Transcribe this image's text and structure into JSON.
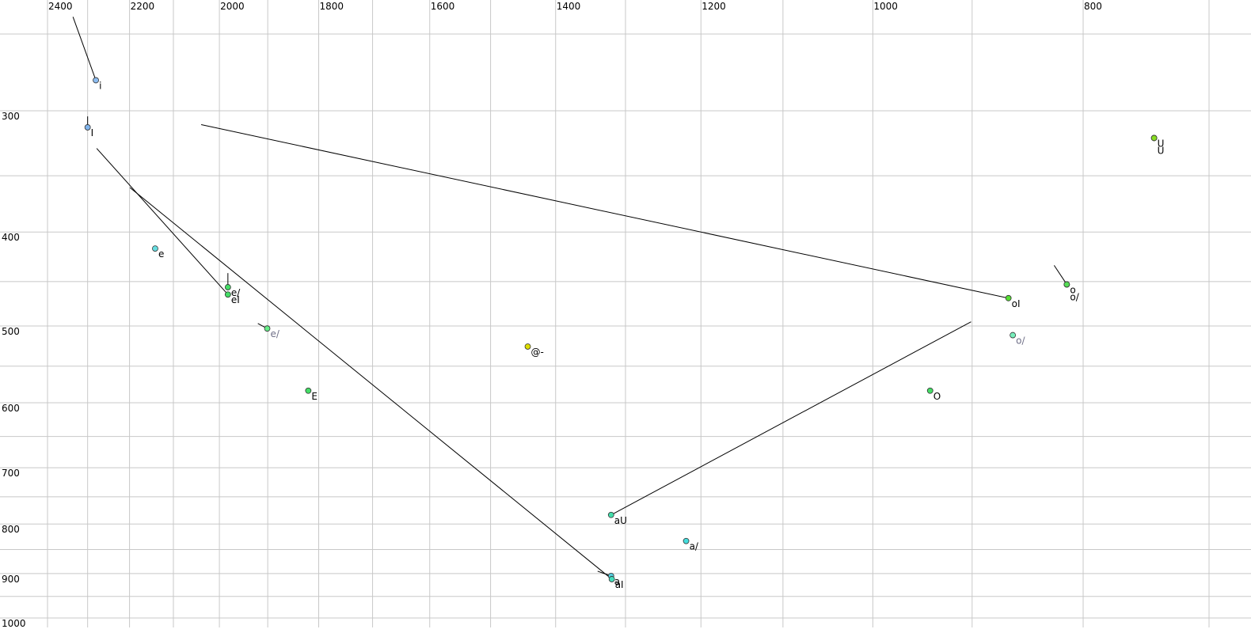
{
  "chart_data": {
    "type": "scatter",
    "xscale": "log",
    "yscale": "log",
    "x_reversed": true,
    "xlim": [
      2400,
      700
    ],
    "ylim": [
      250,
      1000
    ],
    "xticks": [
      2400,
      2200,
      2000,
      1800,
      1600,
      1400,
      1200,
      1000,
      800
    ],
    "xminorticks": [
      2300,
      2100,
      1900,
      1700,
      1500,
      1300,
      1100,
      900,
      700
    ],
    "yticks": [
      300,
      400,
      500,
      600,
      700,
      800,
      900,
      1000
    ],
    "yminorticks": [
      250,
      350,
      450,
      550,
      650,
      750,
      850,
      950
    ],
    "grid": true,
    "points": [
      {
        "label": "i",
        "x": 2280,
        "y": 279,
        "color": "#8cbcf0"
      },
      {
        "label": "I",
        "x": 2300,
        "y": 312,
        "color": "#80b4ec"
      },
      {
        "label": "e",
        "x": 2141,
        "y": 416,
        "color": "#66dde0"
      },
      {
        "label": "e/",
        "x": 1982,
        "y": 456,
        "color": "#44dd66"
      },
      {
        "label": "eI",
        "x": 1982,
        "y": 464,
        "color": "#44dd66"
      },
      {
        "label": "e/",
        "x": 1901,
        "y": 503,
        "color": "#66ee88",
        "label_color": "#707088"
      },
      {
        "label": "E",
        "x": 1820,
        "y": 583,
        "color": "#44dd66"
      },
      {
        "label": "@-",
        "x": 1442,
        "y": 525,
        "color": "#dddd00"
      },
      {
        "label": "aU",
        "x": 1320,
        "y": 783,
        "color": "#44ddaa"
      },
      {
        "label": "a/",
        "x": 1219,
        "y": 833,
        "color": "#44dddd"
      },
      {
        "label": "a",
        "x": 1320,
        "y": 905,
        "color": "#55ccdd"
      },
      {
        "label": "aI",
        "x": 1319,
        "y": 912,
        "color": "#44ddbb"
      },
      {
        "label": "oI",
        "x": 866,
        "y": 468,
        "color": "#55dd33"
      },
      {
        "label": "o/",
        "x": 862,
        "y": 511,
        "color": "#77eebb",
        "label_color": "#707088"
      },
      {
        "label": "O",
        "x": 941,
        "y": 583,
        "color": "#44dd66"
      },
      {
        "label": "o",
        "x": 814,
        "y": 453,
        "color": "#55dd55"
      },
      {
        "label": "o/",
        "x": 814,
        "y": 453,
        "color": "#55dd55"
      },
      {
        "label": "U",
        "x": 742,
        "y": 320,
        "color": "#88dd22"
      },
      {
        "label": "U",
        "x": 742,
        "y": 320,
        "color": "#88dd22"
      }
    ],
    "trajectories": [
      {
        "x": [
          2336,
          2280
        ],
        "y": [
          240,
          279
        ]
      },
      {
        "x": [
          2300,
          2300
        ],
        "y": [
          304,
          312
        ]
      },
      {
        "x": [
          2278,
          1982
        ],
        "y": [
          328,
          464
        ]
      },
      {
        "x": [
          2199,
          1319
        ],
        "y": [
          360,
          912
        ]
      },
      {
        "x": [
          1982,
          1982
        ],
        "y": [
          441,
          456
        ]
      },
      {
        "x": [
          2039,
          866
        ],
        "y": [
          310,
          468
        ]
      },
      {
        "x": [
          901,
          1320
        ],
        "y": [
          495,
          783
        ]
      },
      {
        "x": [
          825,
          814
        ],
        "y": [
          433,
          453
        ]
      },
      {
        "x": [
          1920,
          1901
        ],
        "y": [
          497,
          503
        ]
      },
      {
        "x": [
          1339,
          1320
        ],
        "y": [
          895,
          905
        ]
      }
    ]
  }
}
